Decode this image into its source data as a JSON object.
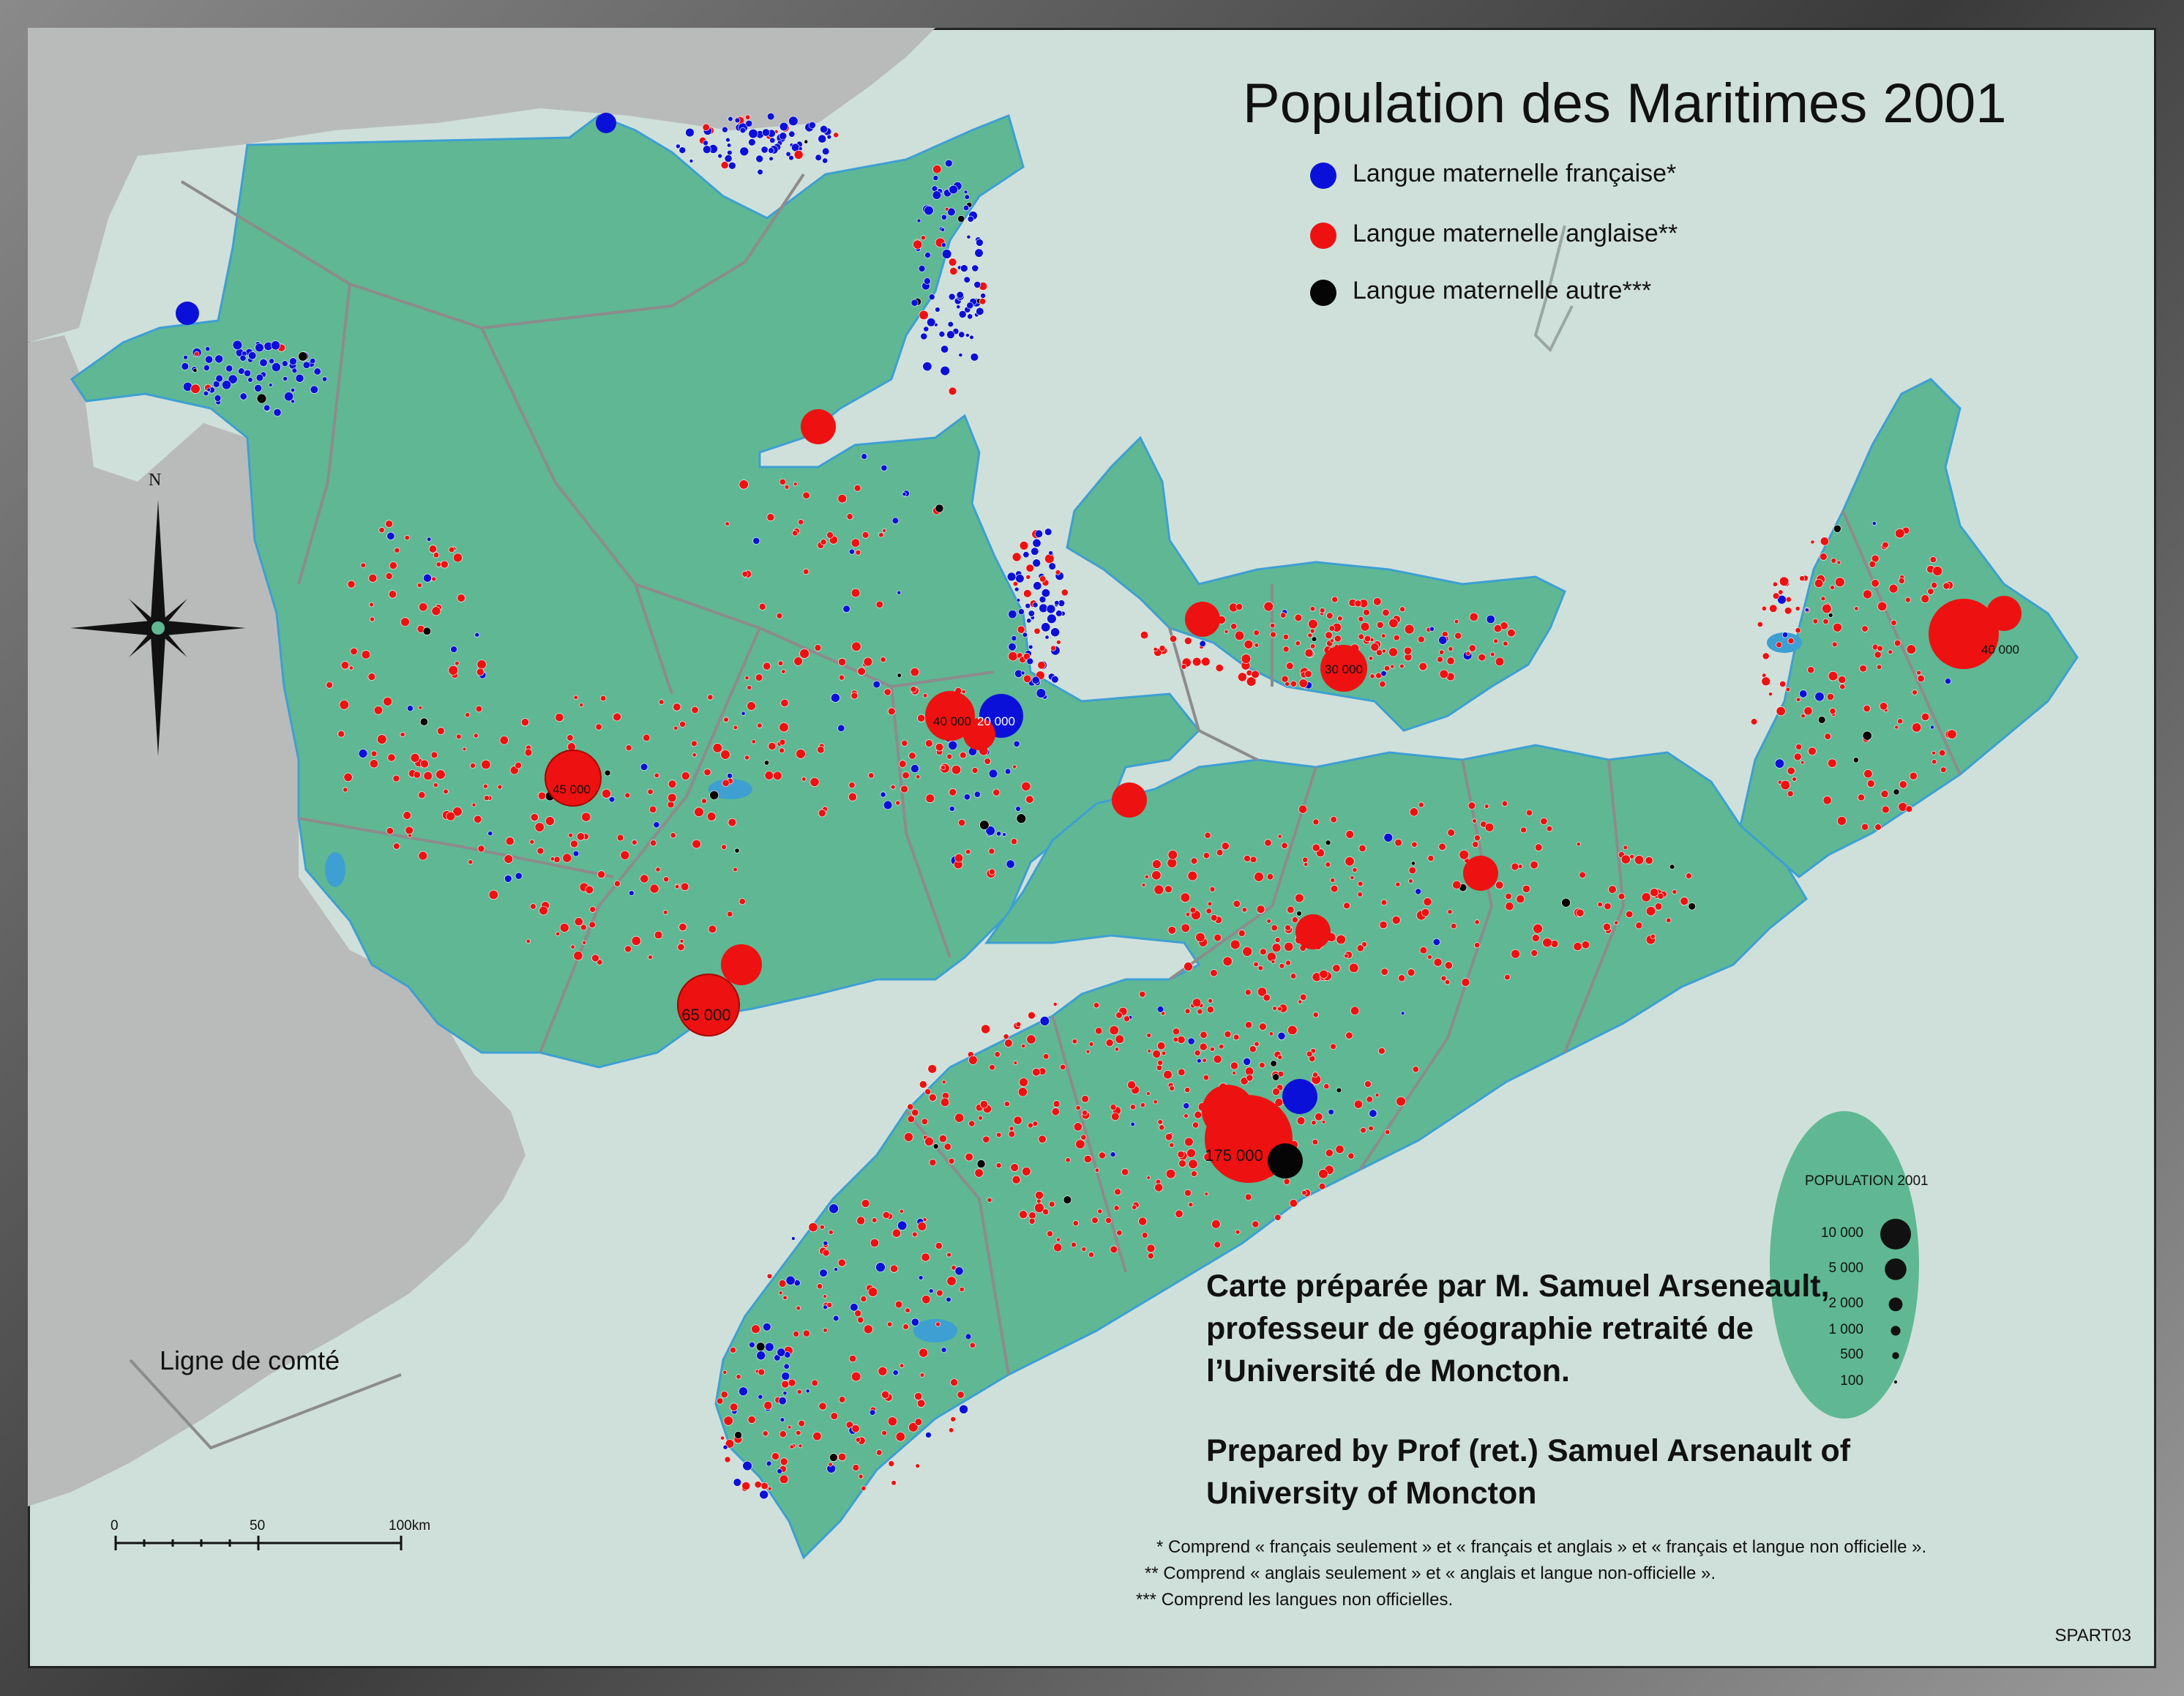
{
  "title": "Population des Maritimes 2001",
  "legend": {
    "french": {
      "label": "Langue maternelle française*",
      "color": "#0b10d8"
    },
    "english": {
      "label": "Langue maternelle anglaise**",
      "color": "#ee1111"
    },
    "other": {
      "label": "Langue maternelle autre***",
      "color": "#050505"
    }
  },
  "colors": {
    "land": "#5fb893",
    "sea": "#cfe0da",
    "foreign_land": "#b9bbba",
    "roads": "#8c8c8c",
    "water": "#3e9fd2"
  },
  "city_labels": [
    "45 000",
    "65 000",
    "40 000",
    "20 000",
    "30 000",
    "40 000",
    "175 000"
  ],
  "credit_fr": "Carte préparée par M. Samuel Arseneault, professeur de géographie retraité de l’Université de Moncton.",
  "credit_en": "Prepared by Prof (ret.) Samuel Arsenault of University of Moncton",
  "notes": [
    "* Comprend « français seulement » et « français et anglais » et « français et langue non officielle ».",
    "** Comprend « anglais seulement » et « anglais et langue non-officielle ».",
    "*** Comprend les langues non officielles."
  ],
  "county_line_label": "Ligne de comté",
  "north_label": "N",
  "scale": {
    "labels": [
      "0",
      "50",
      "100km"
    ]
  },
  "population_legend": {
    "title": "POPULATION 2001",
    "entries": [
      {
        "label": "10 000",
        "value": 10000
      },
      {
        "label": "5 000",
        "value": 5000
      },
      {
        "label": "2 000",
        "value": 2000
      },
      {
        "label": "1 000",
        "value": 1000
      },
      {
        "label": "500",
        "value": 500
      },
      {
        "label": "100",
        "value": 100
      }
    ]
  },
  "map_code": "SPART03"
}
